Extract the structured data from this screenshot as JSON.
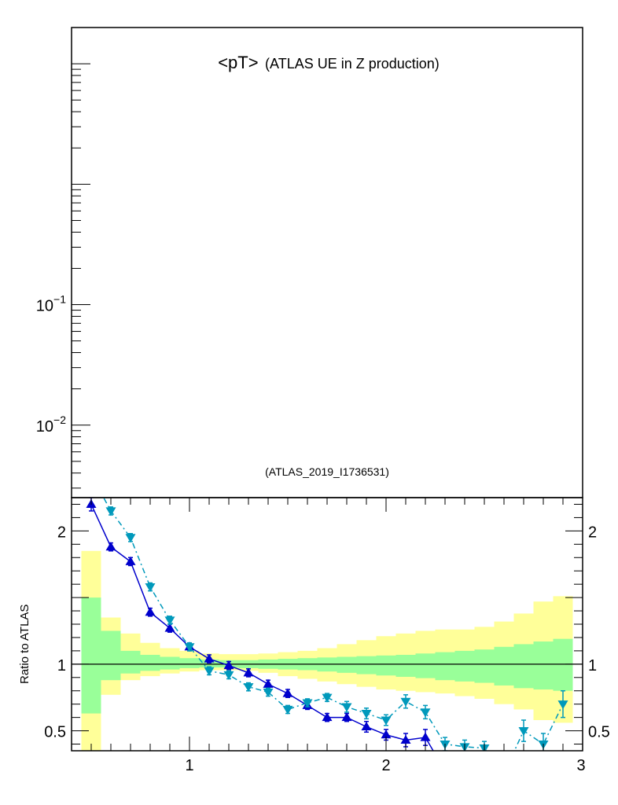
{
  "colors": {
    "sim1": "#0000cc",
    "sim2": "#0099bb",
    "band_inner": "#99ff99",
    "band_outer": "#ffff99",
    "axis": "#000000"
  },
  "chart_data": [
    {
      "type": "line",
      "panel": "main",
      "title_main": "<pT>",
      "title_sub": "(ATLAS UE in Z production)",
      "annotation": "(ATLAS_2019_I1736531)",
      "yscale": "log",
      "ylim": [
        0.0025,
        20
      ],
      "y_tick_labels": [
        {
          "value": 0.1,
          "base": "10",
          "exp": "−1"
        },
        {
          "value": 0.01,
          "base": "10",
          "exp": "−2"
        }
      ],
      "series": []
    },
    {
      "type": "line",
      "panel": "ratio",
      "ylabel": "Ratio to ATLAS",
      "xlim": [
        0.4,
        3.0
      ],
      "ylim": [
        0.35,
        2.25
      ],
      "x_ticks": [
        {
          "value": 1,
          "label": "1"
        },
        {
          "value": 2,
          "label": "2"
        },
        {
          "value": 3,
          "label": "3"
        }
      ],
      "y_ticks": [
        {
          "value": 0.5,
          "label": "0.5"
        },
        {
          "value": 1,
          "label": "1"
        },
        {
          "value": 2,
          "label": "2"
        }
      ],
      "bin_edges": [
        0.45,
        0.55,
        0.65,
        0.75,
        0.85,
        0.95,
        1.05,
        1.15,
        1.25,
        1.35,
        1.45,
        1.55,
        1.65,
        1.75,
        1.85,
        1.95,
        2.05,
        2.15,
        2.25,
        2.35,
        2.45,
        2.55,
        2.65,
        2.75,
        2.85,
        2.95
      ],
      "band_inner": {
        "lo": [
          0.63,
          0.88,
          0.93,
          0.95,
          0.96,
          0.97,
          0.975,
          0.975,
          0.97,
          0.965,
          0.96,
          0.955,
          0.945,
          0.935,
          0.925,
          0.915,
          0.905,
          0.895,
          0.88,
          0.87,
          0.86,
          0.84,
          0.82,
          0.81,
          0.8,
          0.76
        ],
        "hi": [
          1.5,
          1.25,
          1.1,
          1.07,
          1.055,
          1.045,
          1.035,
          1.03,
          1.03,
          1.035,
          1.04,
          1.045,
          1.05,
          1.055,
          1.06,
          1.065,
          1.07,
          1.08,
          1.09,
          1.1,
          1.11,
          1.13,
          1.15,
          1.17,
          1.19,
          1.22
        ]
      },
      "band_outer": {
        "lo": [
          0.2,
          0.77,
          0.88,
          0.91,
          0.93,
          0.945,
          0.955,
          0.955,
          0.95,
          0.935,
          0.91,
          0.89,
          0.87,
          0.85,
          0.83,
          0.81,
          0.8,
          0.79,
          0.78,
          0.76,
          0.74,
          0.7,
          0.66,
          0.58,
          0.56,
          0.38
        ],
        "hi": [
          1.85,
          1.35,
          1.23,
          1.16,
          1.12,
          1.1,
          1.08,
          1.075,
          1.075,
          1.08,
          1.09,
          1.1,
          1.12,
          1.15,
          1.18,
          1.21,
          1.23,
          1.25,
          1.26,
          1.26,
          1.28,
          1.32,
          1.38,
          1.47,
          1.51,
          1.65
        ]
      },
      "reference_line": 1,
      "series": [
        {
          "name": "sim1",
          "marker": "triangle-up",
          "line": "solid",
          "x": [
            0.5,
            0.6,
            0.7,
            0.8,
            0.9,
            1.0,
            1.1,
            1.2,
            1.3,
            1.4,
            1.5,
            1.6,
            1.7,
            1.8,
            1.9,
            2.0,
            2.1,
            2.2,
            2.3
          ],
          "y": [
            2.2,
            1.88,
            1.77,
            1.39,
            1.27,
            1.13,
            1.04,
            0.99,
            0.935,
            0.85,
            0.78,
            0.69,
            0.6,
            0.6,
            0.53,
            0.47,
            0.43,
            0.45,
            0.2
          ],
          "err": [
            0.05,
            0.03,
            0.03,
            0.03,
            0.03,
            0.03,
            0.03,
            0.03,
            0.03,
            0.03,
            0.03,
            0.03,
            0.03,
            0.03,
            0.04,
            0.04,
            0.05,
            0.06,
            0.05
          ]
        },
        {
          "name": "sim2",
          "marker": "triangle-down",
          "line": "dashdot",
          "x": [
            0.5,
            0.6,
            0.7,
            0.8,
            0.9,
            1.0,
            1.1,
            1.2,
            1.3,
            1.4,
            1.5,
            1.6,
            1.7,
            1.8,
            1.9,
            2.0,
            2.1,
            2.2,
            2.3,
            2.4,
            2.5,
            2.6,
            2.7,
            2.8,
            2.9
          ],
          "y": [
            2.42,
            2.15,
            1.95,
            1.58,
            1.33,
            1.13,
            0.95,
            0.92,
            0.83,
            0.79,
            0.66,
            0.71,
            0.75,
            0.68,
            0.63,
            0.58,
            0.72,
            0.64,
            0.4,
            0.38,
            0.37,
            0.18,
            0.5,
            0.4,
            0.7
          ],
          "err": [
            0.04,
            0.03,
            0.03,
            0.03,
            0.03,
            0.03,
            0.03,
            0.03,
            0.03,
            0.03,
            0.03,
            0.03,
            0.03,
            0.04,
            0.04,
            0.04,
            0.05,
            0.05,
            0.05,
            0.05,
            0.05,
            0.05,
            0.08,
            0.08,
            0.1
          ]
        }
      ]
    }
  ]
}
